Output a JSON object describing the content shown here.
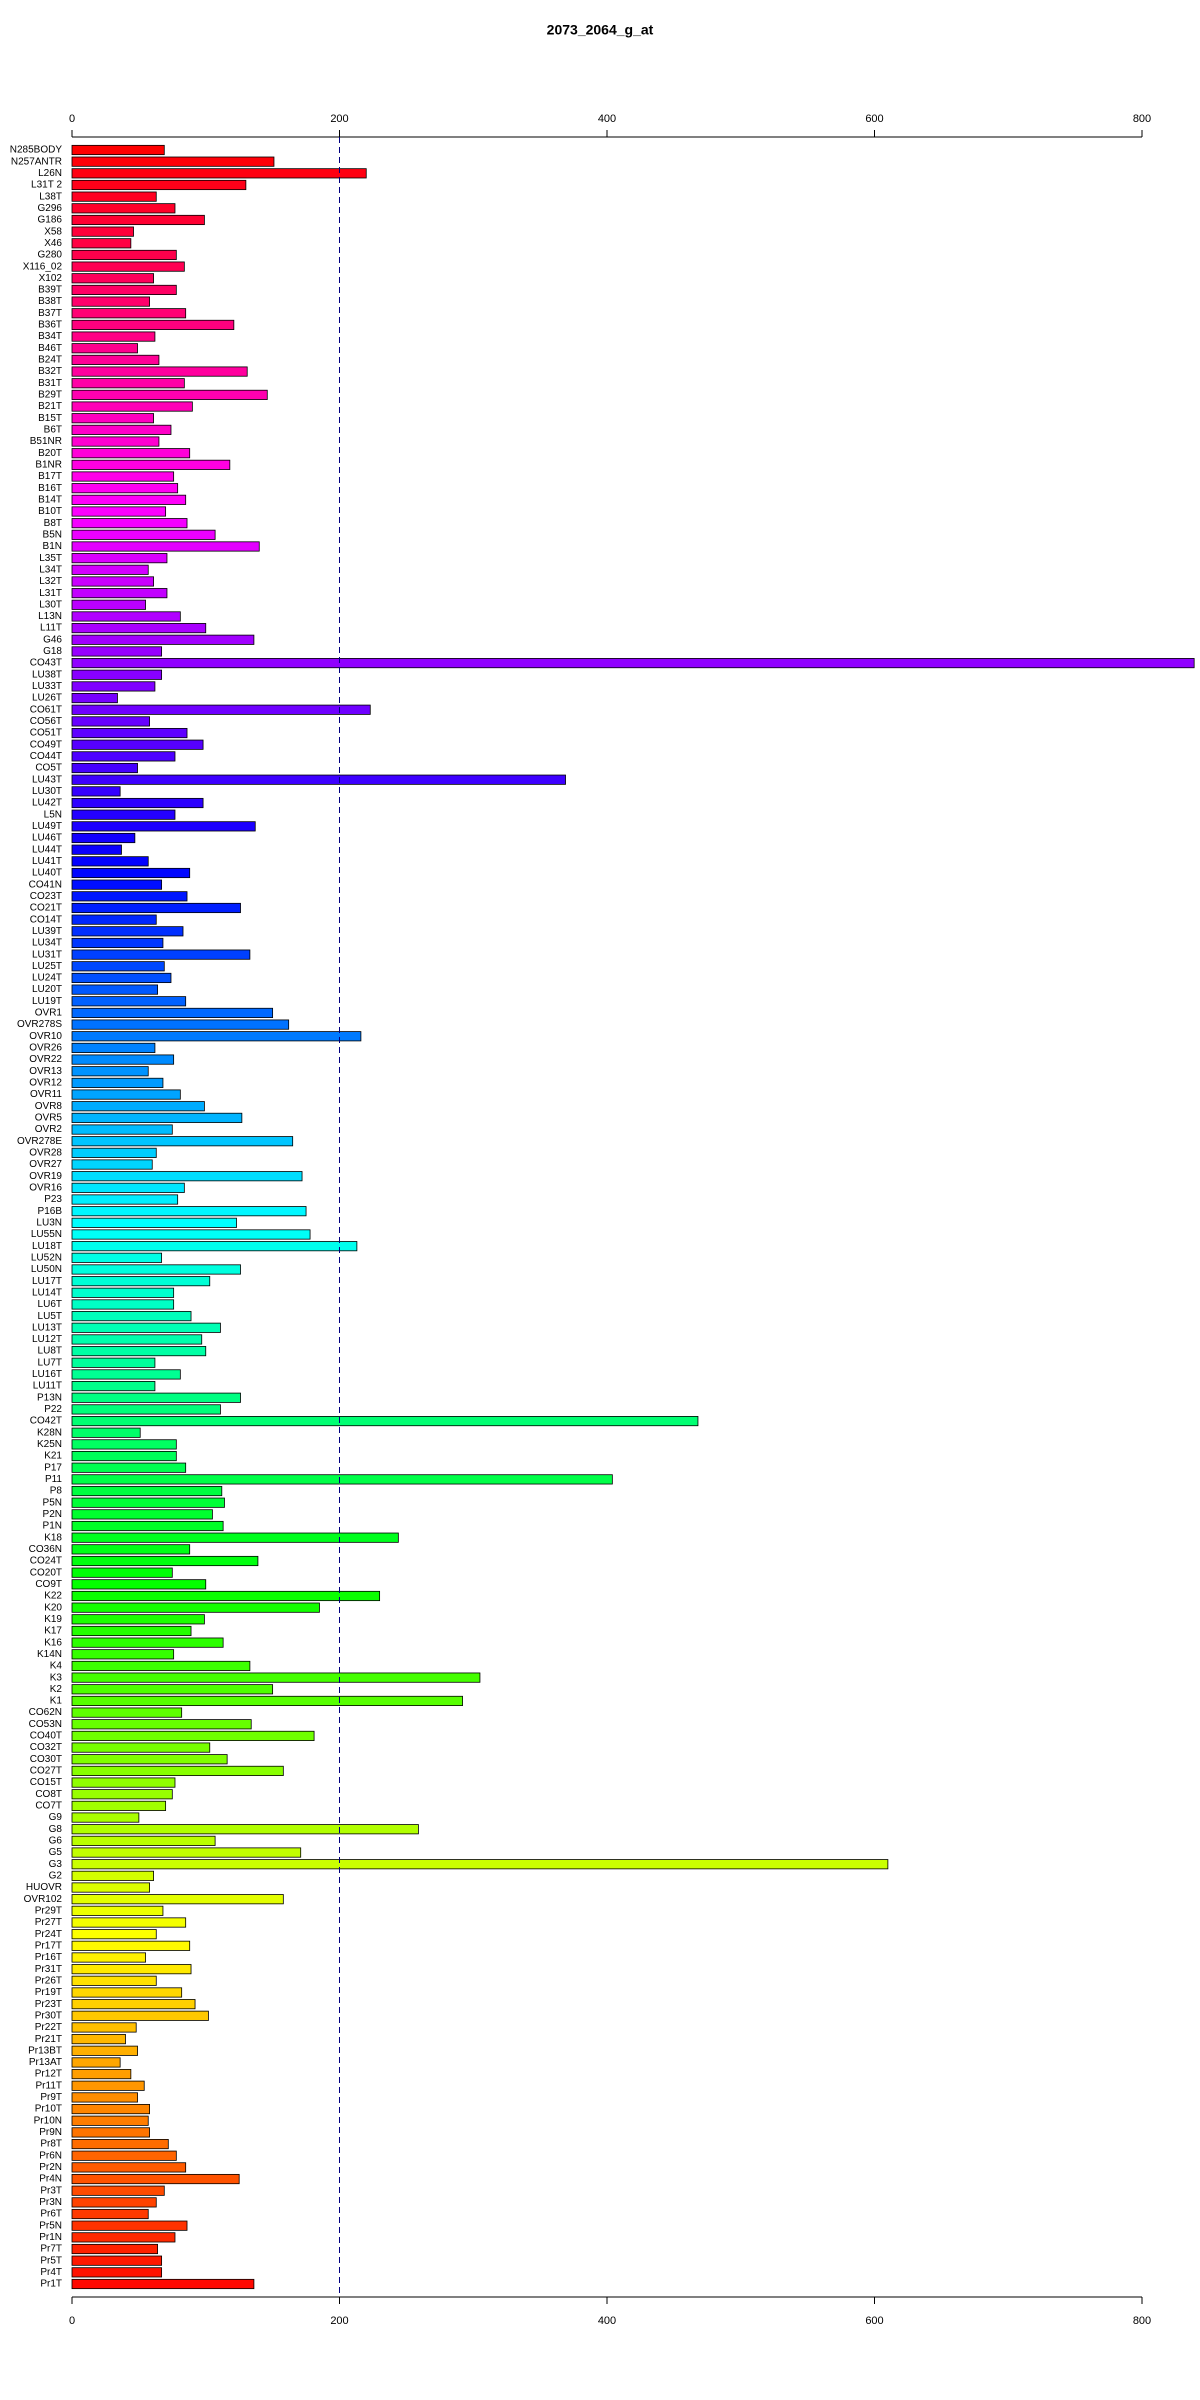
{
  "chart_data": {
    "type": "barh",
    "title": "2073_2064_g_at",
    "categories": [
      "N285BODY",
      "N257ANTR",
      "L26N",
      "L31T 2",
      "L38T",
      "G296",
      "G186",
      "X58",
      "X46",
      "G280",
      "X116_02",
      "X102",
      "B39T",
      "B38T",
      "B37T",
      "B36T",
      "B34T",
      "B46T",
      "B24T",
      "B32T",
      "B31T",
      "B29T",
      "B21T",
      "B15T",
      "B6T",
      "B51NR",
      "B20T",
      "B1NR",
      "B17T",
      "B16T",
      "B14T",
      "B10T",
      "B8T",
      "B5N",
      "B1N",
      "L35T",
      "L34T",
      "L32T",
      "L31T",
      "L30T",
      "L13N",
      "L11T",
      "G46",
      "G18",
      "CO43T",
      "LU38T",
      "LU33T",
      "LU26T",
      "CO61T",
      "CO56T",
      "CO51T",
      "CO49T",
      "CO44T",
      "CO5T",
      "LU43T",
      "LU30T",
      "LU42T",
      "L5N",
      "LU49T",
      "LU46T",
      "LU44T",
      "LU41T",
      "LU40T",
      "CO41N",
      "CO23T",
      "CO21T",
      "CO14T",
      "LU39T",
      "LU34T",
      "LU31T",
      "LU25T",
      "LU24T",
      "LU20T",
      "LU19T",
      "OVR1",
      "OVR278S",
      "OVR10",
      "OVR26",
      "OVR22",
      "OVR13",
      "OVR12",
      "OVR11",
      "OVR8",
      "OVR5",
      "OVR2",
      "OVR278E",
      "OVR28",
      "OVR27",
      "OVR19",
      "OVR16",
      "P23",
      "P16B",
      "LU3N",
      "LU55N",
      "LU18T",
      "LU52N",
      "LU50N",
      "LU17T",
      "LU14T",
      "LU6T",
      "LU5T",
      "LU13T",
      "LU12T",
      "LU8T",
      "LU7T",
      "LU16T",
      "LU11T",
      "P13N",
      "P22",
      "CO42T",
      "K28N",
      "K25N",
      "K21",
      "P17",
      "P11",
      "P8",
      "P5N",
      "P2N",
      "P1N",
      "K18",
      "CO36N",
      "CO24T",
      "CO20T",
      "CO9T",
      "K22",
      "K20",
      "K19",
      "K17",
      "K16",
      "K14N",
      "K4",
      "K3",
      "K2",
      "K1",
      "CO62N",
      "CO53N",
      "CO40T",
      "CO32T",
      "CO30T",
      "CO27T",
      "CO15T",
      "CO8T",
      "CO7T",
      "G9",
      "G8",
      "G6",
      "G5",
      "G3",
      "G2",
      "HUOVR",
      "OVR102",
      "Pr29T",
      "Pr27T",
      "Pr24T",
      "Pr17T",
      "Pr16T",
      "Pr31T",
      "Pr26T",
      "Pr19T",
      "Pr23T",
      "Pr30T",
      "Pr22T",
      "Pr21T",
      "Pr13BT",
      "Pr13AT",
      "Pr12T",
      "Pr11T",
      "Pr9T",
      "Pr10T",
      "Pr10N",
      "Pr9N",
      "Pr8T",
      "Pr6N",
      "Pr2N",
      "Pr4N",
      "Pr3T",
      "Pr3N",
      "Pr6T",
      "Pr5N",
      "Pr1N",
      "Pr7T",
      "Pr5T",
      "Pr4T",
      "Pr1T"
    ],
    "values": [
      69,
      151,
      220,
      130,
      63,
      77,
      99,
      46,
      44,
      78,
      84,
      61,
      78,
      58,
      85,
      121,
      62,
      49,
      65,
      131,
      84,
      146,
      90,
      61,
      74,
      65,
      88,
      118,
      76,
      79,
      85,
      70,
      86,
      107,
      140,
      71,
      57,
      61,
      71,
      55,
      81,
      100,
      136,
      67,
      839,
      67,
      62,
      34,
      223,
      58,
      86,
      98,
      77,
      49,
      369,
      36,
      98,
      77,
      137,
      47,
      37,
      57,
      88,
      67,
      86,
      126,
      63,
      83,
      68,
      133,
      69,
      74,
      64,
      85,
      150,
      162,
      216,
      62,
      76,
      57,
      68,
      81,
      99,
      127,
      75,
      165,
      63,
      60,
      172,
      84,
      79,
      175,
      123,
      178,
      213,
      67,
      126,
      103,
      76,
      76,
      89,
      111,
      97,
      100,
      62,
      81,
      62,
      126,
      111,
      468,
      51,
      78,
      78,
      85,
      404,
      112,
      114,
      105,
      113,
      244,
      88,
      139,
      75,
      100,
      230,
      185,
      99,
      89,
      113,
      76,
      133,
      305,
      150,
      292,
      82,
      134,
      181,
      103,
      116,
      158,
      77,
      75,
      70,
      50,
      259,
      107,
      171,
      610,
      61,
      58,
      158,
      68,
      85,
      63,
      88,
      55,
      89,
      63,
      82,
      92,
      102,
      48,
      40,
      49,
      36,
      44,
      54,
      49,
      58,
      57,
      58,
      72,
      78,
      85,
      125,
      69,
      63,
      57,
      86,
      77,
      64,
      67,
      67,
      136
    ],
    "color": "rainbow",
    "xlim": [
      0,
      840
    ],
    "xticks": [
      0,
      200,
      400,
      600,
      800
    ],
    "vline": 200
  }
}
